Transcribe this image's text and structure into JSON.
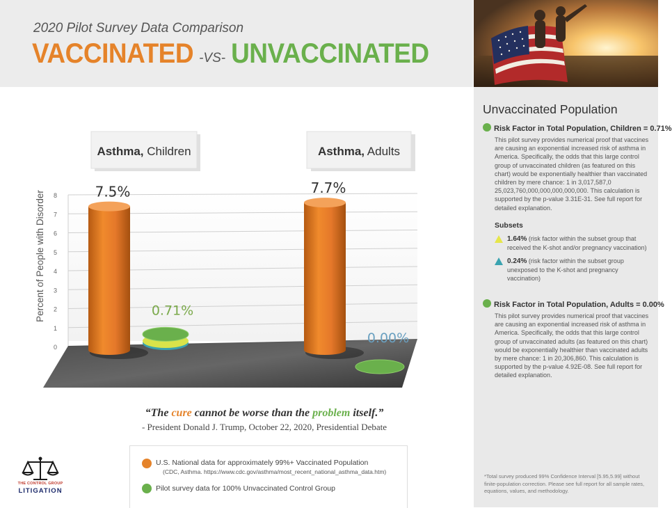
{
  "header": {
    "subtitle": "2020 Pilot Survey Data Comparison",
    "title_left": "VACCINATED",
    "title_vs": "-VS-",
    "title_right": "UNVACCINATED"
  },
  "colors": {
    "vaccinated": "#e5832a",
    "unvaccinated": "#6ab04c",
    "sidebar_bg": "#e9e9e9",
    "subset_yellow": "#e6e64a",
    "subset_teal": "#3aa3b0"
  },
  "chart_data": {
    "type": "bar",
    "style": "3d-cylinder",
    "ylabel": "Percent of People with Disorder",
    "ylim": [
      0,
      8
    ],
    "yticks": [
      "0",
      "1",
      "2",
      "3",
      "4",
      "5",
      "6",
      "7",
      "8"
    ],
    "grid": true,
    "categories": [
      {
        "label_bold": "Asthma,",
        "label_rest": " Children"
      },
      {
        "label_bold": "Asthma,",
        "label_rest": " Adults"
      }
    ],
    "series": [
      {
        "values": [
          7.5,
          7.7
        ],
        "data_labels": [
          "7.5%",
          "7.7%"
        ],
        "color": "#e5832a"
      },
      {
        "values": [
          0.71,
          0.0
        ],
        "data_labels": [
          "0.71%",
          "0.00%"
        ],
        "color": "#6ab04c"
      }
    ]
  },
  "quote": {
    "pre": "“The ",
    "cure": "cure",
    "mid": " cannot be worse than the ",
    "problem": "problem",
    "post": " itself.”",
    "attribution": "- President Donald J. Trump, October 22, 2020, Presidential Debate"
  },
  "legend": {
    "vaccinated_label": "U.S. National data for approximately 99%+ Vaccinated Population",
    "vaccinated_source": "(CDC, Asthma. https://www.cdc.gov/asthma/most_recent_national_asthma_data.htm)",
    "unvaccinated_label": "Pilot survey data for 100% Unvaccinated Control Group"
  },
  "logo": {
    "line1": "THE CONTROL GROUP",
    "line2": "LITIGATION"
  },
  "sidebar": {
    "title": "Unvaccinated Population",
    "children_heading": "Risk Factor in Total Population, Children = 0.71%",
    "children_text": "This pilot survey provides numerical proof that vaccines are causing an exponential increased risk of asthma in America. Specifically, the odds that this large control group of unvaccinated children (as featured on this chart) would be exponentially healthier than vaccinated children by mere chance: 1 in 3,017,587,0 25,023,760,000,000,000,000,000. This calculation is supported by the p-value 3.31E-31. See full report for detailed explanation.",
    "subsets_heading": "Subsets",
    "subset1_value": "1.64%",
    "subset1_text": " (risk factor within the subset group that received the K-shot and/or pregnancy vaccination)",
    "subset2_value": "0.24%",
    "subset2_text": " (risk factor within the subset group unexposed to the K-shot and pregnancy vaccination)",
    "adults_heading": "Risk Factor in Total Population, Adults  = 0.00%",
    "adults_text": "This pilot survey provides numerical proof that vaccines are causing an exponential increased risk of asthma in America. Specifically, the odds that this large control group of unvaccinated adults (as featured on this chart) would be exponentially healthier than vaccinated adults by mere chance: 1 in 20,306,860. This calculation is supported by the p-value 4.92E-08. See full report for detailed explanation.",
    "footnote": "*Total survey produced 99% Confidence Interval [5.95,5.99] without finite-population correction. Please see full report for all sample rates, equations, values, and methodology."
  }
}
